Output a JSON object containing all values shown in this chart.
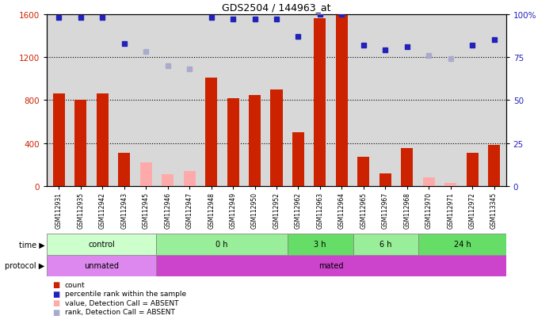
{
  "title": "GDS2504 / 144963_at",
  "samples": [
    "GSM112931",
    "GSM112935",
    "GSM112942",
    "GSM112943",
    "GSM112945",
    "GSM112946",
    "GSM112947",
    "GSM112948",
    "GSM112949",
    "GSM112950",
    "GSM112952",
    "GSM112962",
    "GSM112963",
    "GSM112964",
    "GSM112965",
    "GSM112967",
    "GSM112968",
    "GSM112970",
    "GSM112971",
    "GSM112972",
    "GSM113345"
  ],
  "count_values": [
    860,
    800,
    860,
    310,
    0,
    0,
    0,
    1010,
    820,
    850,
    900,
    500,
    1560,
    1590,
    270,
    120,
    350,
    0,
    0,
    310,
    380
  ],
  "count_absent": [
    false,
    false,
    false,
    false,
    true,
    true,
    true,
    false,
    false,
    false,
    false,
    false,
    false,
    false,
    false,
    false,
    false,
    true,
    true,
    false,
    false
  ],
  "count_absent_values": [
    0,
    0,
    0,
    0,
    220,
    110,
    140,
    0,
    0,
    0,
    0,
    0,
    0,
    0,
    0,
    0,
    0,
    80,
    30,
    0,
    0
  ],
  "rank_values": [
    98,
    98,
    98,
    83,
    78,
    70,
    68,
    98,
    97,
    97,
    97,
    87,
    100,
    100,
    82,
    79,
    81,
    76,
    74,
    82,
    85
  ],
  "rank_absent": [
    false,
    false,
    false,
    false,
    true,
    true,
    true,
    false,
    false,
    false,
    false,
    false,
    false,
    false,
    false,
    false,
    false,
    true,
    true,
    false,
    false
  ],
  "rank_absent_values": [
    0,
    0,
    0,
    0,
    78,
    70,
    68,
    0,
    0,
    0,
    0,
    0,
    0,
    0,
    0,
    0,
    0,
    76,
    74,
    0,
    0
  ],
  "time_groups": [
    {
      "label": "control",
      "start": 0,
      "end": 5,
      "color": "#ccffcc"
    },
    {
      "label": "0 h",
      "start": 5,
      "end": 11,
      "color": "#99ee99"
    },
    {
      "label": "3 h",
      "start": 11,
      "end": 14,
      "color": "#66dd66"
    },
    {
      "label": "6 h",
      "start": 14,
      "end": 17,
      "color": "#99ee99"
    },
    {
      "label": "24 h",
      "start": 17,
      "end": 21,
      "color": "#66dd66"
    }
  ],
  "protocol_groups": [
    {
      "label": "unmated",
      "start": 0,
      "end": 5,
      "color": "#dd88ee"
    },
    {
      "label": "mated",
      "start": 5,
      "end": 21,
      "color": "#cc44cc"
    }
  ],
  "ylim_left": [
    0,
    1600
  ],
  "ylim_right": [
    0,
    100
  ],
  "yticks_left": [
    0,
    400,
    800,
    1200,
    1600
  ],
  "ytick_labels_left": [
    "0",
    "400",
    "800",
    "1200",
    "1600"
  ],
  "yticks_right": [
    0,
    25,
    50,
    75,
    100
  ],
  "ytick_labels_right": [
    "0",
    "25",
    "50",
    "75",
    "100%"
  ],
  "bar_color_present": "#cc2200",
  "bar_color_absent": "#ffaaaa",
  "dot_color_present": "#2222bb",
  "dot_color_absent": "#aaaacc",
  "bg_color": "#d8d8d8"
}
